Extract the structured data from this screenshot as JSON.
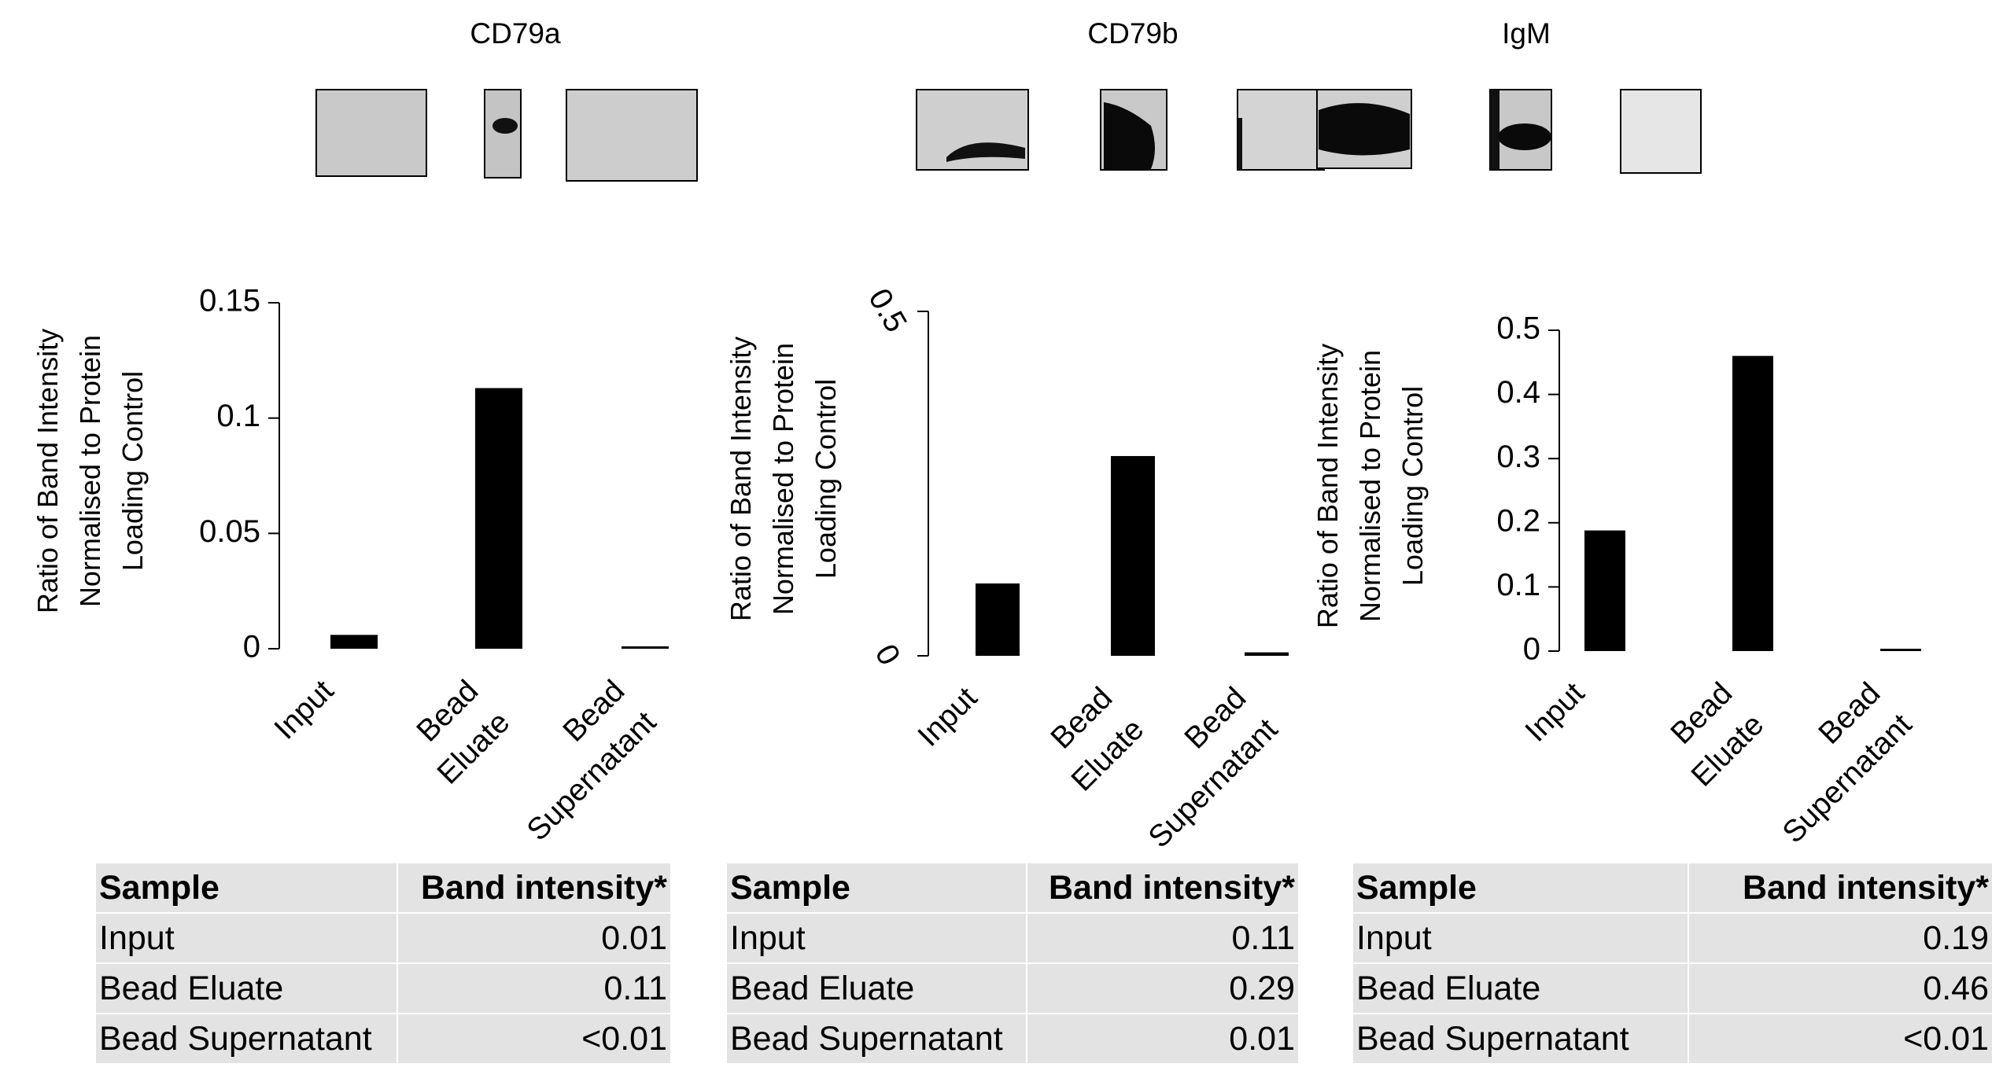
{
  "chart_data": [
    {
      "type": "bar",
      "title": "CD79a",
      "ylabel": [
        "Ratio of Band Intensity",
        "Normalised to Protein",
        "Loading Control"
      ],
      "categories": [
        [
          "Input"
        ],
        [
          "Bead",
          "Eluate"
        ],
        [
          "Bead",
          "Supernatant"
        ]
      ],
      "values": [
        0.006,
        0.113,
        0.001
      ],
      "ylim": [
        0,
        0.15
      ],
      "yticks": [
        0,
        0.05,
        0.1,
        0.15
      ],
      "ytick_labels": [
        "0",
        "0.05",
        "0.1",
        "0.15"
      ],
      "table": {
        "headers": [
          "Sample",
          "Band intensity*"
        ],
        "rows": [
          [
            "Input",
            "0.01"
          ],
          [
            "Bead Eluate",
            "0.11"
          ],
          [
            "Bead Supernatant",
            "<0.01"
          ]
        ]
      }
    },
    {
      "type": "bar",
      "title": "CD79b",
      "ylabel": [
        "Ratio of Band Intensity",
        "Normalised to Protein",
        "Loading Control"
      ],
      "categories": [
        [
          "Input"
        ],
        [
          "Bead",
          "Eluate"
        ],
        [
          "Bead",
          "Supernatant"
        ]
      ],
      "values": [
        0.105,
        0.29,
        0.005
      ],
      "ylim": [
        0,
        0.5
      ],
      "yticks": [
        0,
        0.5
      ],
      "ytick_labels": [
        "0",
        "0.5"
      ],
      "table": {
        "headers": [
          "Sample",
          "Band intensity*"
        ],
        "rows": [
          [
            "Input",
            "0.11"
          ],
          [
            "Bead Eluate",
            "0.29"
          ],
          [
            "Bead Supernatant",
            "0.01"
          ]
        ]
      }
    },
    {
      "type": "bar",
      "title": "IgM",
      "ylabel": [
        "Ratio of Band Intensity",
        "Normalised to Protein",
        "Loading Control"
      ],
      "categories": [
        [
          "Input"
        ],
        [
          "Bead",
          "Eluate"
        ],
        [
          "Bead",
          "Supernatant"
        ]
      ],
      "values": [
        0.188,
        0.46,
        0.002
      ],
      "ylim": [
        0,
        0.5
      ],
      "yticks": [
        0,
        0.1,
        0.2,
        0.3,
        0.4,
        0.5
      ],
      "ytick_labels": [
        "0",
        "0.1",
        "0.2",
        "0.3",
        "0.4",
        "0.5"
      ],
      "table": {
        "headers": [
          "Sample",
          "Band intensity*"
        ],
        "rows": [
          [
            "Input",
            "0.19"
          ],
          [
            "Bead Eluate",
            "0.46"
          ],
          [
            "Bead Supernatant",
            "<0.01"
          ]
        ]
      }
    }
  ],
  "colors": {
    "bar": "#000000",
    "table_bg": "#e3e3e3",
    "blot_bg": "#c8c8c8"
  }
}
